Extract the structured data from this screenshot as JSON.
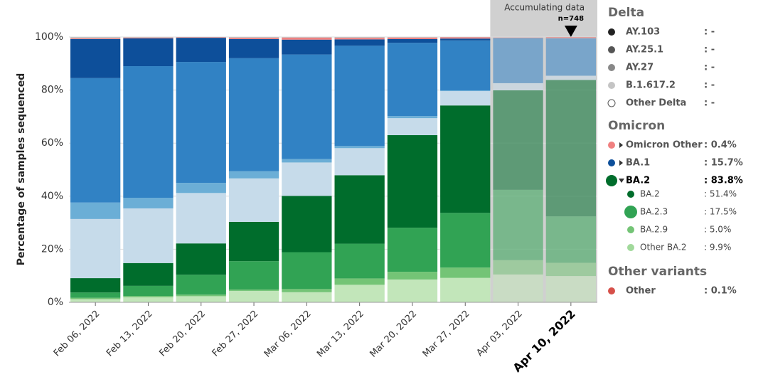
{
  "chart_data": {
    "type": "stacked_bar",
    "y_label": "Percentage of samples sequenced",
    "categories": [
      "Feb 06, 2022",
      "Feb 13, 2022",
      "Feb 20, 2022",
      "Feb 27, 2022",
      "Mar 06, 2022",
      "Mar 13, 2022",
      "Mar 20, 2022",
      "Mar 27, 2022",
      "Apr 03, 2022",
      "Apr 10, 2022"
    ],
    "ylim": [
      0,
      100
    ],
    "yticks": [
      {
        "value": 0,
        "label": "0%"
      },
      {
        "value": 20,
        "label": "20%"
      },
      {
        "value": 40,
        "label": "40%"
      },
      {
        "value": 60,
        "label": "60%"
      },
      {
        "value": 80,
        "label": "80%"
      },
      {
        "value": 100,
        "label": "100%"
      }
    ],
    "grid": true,
    "accumulating": {
      "text": "Accumulating data",
      "n": "n=748",
      "start": 8
    },
    "series": [
      {
        "color": "#c2e6ba",
        "values": [
          1.2,
          1.9,
          2.3,
          4.3,
          3.8,
          6.6,
          8.6,
          9.2,
          10.5,
          9.9
        ]
      },
      {
        "color": "#74c476",
        "values": [
          0.5,
          0.5,
          0.6,
          0.5,
          1.2,
          2.4,
          2.9,
          3.9,
          5.4,
          5.0
        ]
      },
      {
        "color": "#31a354",
        "values": [
          2.0,
          3.8,
          7.5,
          10.7,
          13.9,
          13.1,
          16.6,
          20.6,
          26.5,
          17.5
        ]
      },
      {
        "color": "#006d2c",
        "values": [
          5.4,
          8.6,
          11.8,
          14.8,
          21.2,
          25.8,
          34.9,
          40.5,
          37.5,
          51.4
        ]
      },
      {
        "color": "#c6dbea",
        "values": [
          22.3,
          20.6,
          19.0,
          16.4,
          12.6,
          10.2,
          6.4,
          5.4,
          2.7,
          1.6
        ]
      },
      {
        "color": "#6baed6",
        "values": [
          6.2,
          4.0,
          3.8,
          2.7,
          1.3,
          0.8,
          0.8,
          0.3,
          0,
          0
        ]
      },
      {
        "color": "#3182c4",
        "values": [
          46.9,
          49.6,
          45.6,
          42.6,
          39.4,
          37.8,
          27.6,
          18.8,
          16.9,
          14.1
        ]
      },
      {
        "color": "#0d4f9a",
        "values": [
          14.7,
          10.5,
          9.1,
          7.2,
          5.6,
          2.4,
          1.4,
          0.7,
          0.1,
          0
        ]
      },
      {
        "color": "#f08080",
        "values": [
          0.3,
          0.3,
          0.2,
          0.5,
          0.8,
          0.6,
          0.6,
          0.5,
          0.2,
          0.4
        ]
      },
      {
        "color": "#d6504a",
        "values": [
          0,
          0,
          0,
          0,
          0,
          0,
          0,
          0,
          0,
          0.1
        ]
      },
      {
        "color": "#c4c4c4",
        "values": [
          0.5,
          0.2,
          0.1,
          0.3,
          0.2,
          0.3,
          0.2,
          0.1,
          0,
          0
        ]
      }
    ]
  },
  "legend": [
    {
      "title": "Delta",
      "items": [
        {
          "name": "AY.103",
          "value": ": -",
          "color": "#222222"
        },
        {
          "name": "AY.25.1",
          "value": ": -",
          "color": "#555555"
        },
        {
          "name": "AY.27",
          "value": ": -",
          "color": "#888888"
        },
        {
          "name": "B.1.617.2",
          "value": ": -",
          "color": "#c4c4c4"
        },
        {
          "name": "Other Delta",
          "value": ": -",
          "color": "#ffffff"
        }
      ]
    },
    {
      "title": "Omicron",
      "items": [
        {
          "name": "Omicron Other",
          "value": ": 0.4%",
          "color": "#f08080"
        },
        {
          "name": "BA.1",
          "value": ": 15.7%",
          "color": "#0d4f9a"
        },
        {
          "name": "BA.2",
          "value": ": 83.8%",
          "color": "#006d2c",
          "children": [
            {
              "name": "BA.2",
              "value": ": 51.4%",
              "color": "#006d2c"
            },
            {
              "name": "BA.2.3",
              "value": ": 17.5%",
              "color": "#31a354"
            },
            {
              "name": "BA.2.9",
              "value": ": 5.0%",
              "color": "#74c476"
            },
            {
              "name": "Other BA.2",
              "value": ": 9.9%",
              "color": "#a1d99b"
            }
          ]
        }
      ]
    },
    {
      "title": "Other variants",
      "items": [
        {
          "name": "Other",
          "value": ": 0.1%",
          "color": "#d6504a"
        }
      ]
    }
  ]
}
